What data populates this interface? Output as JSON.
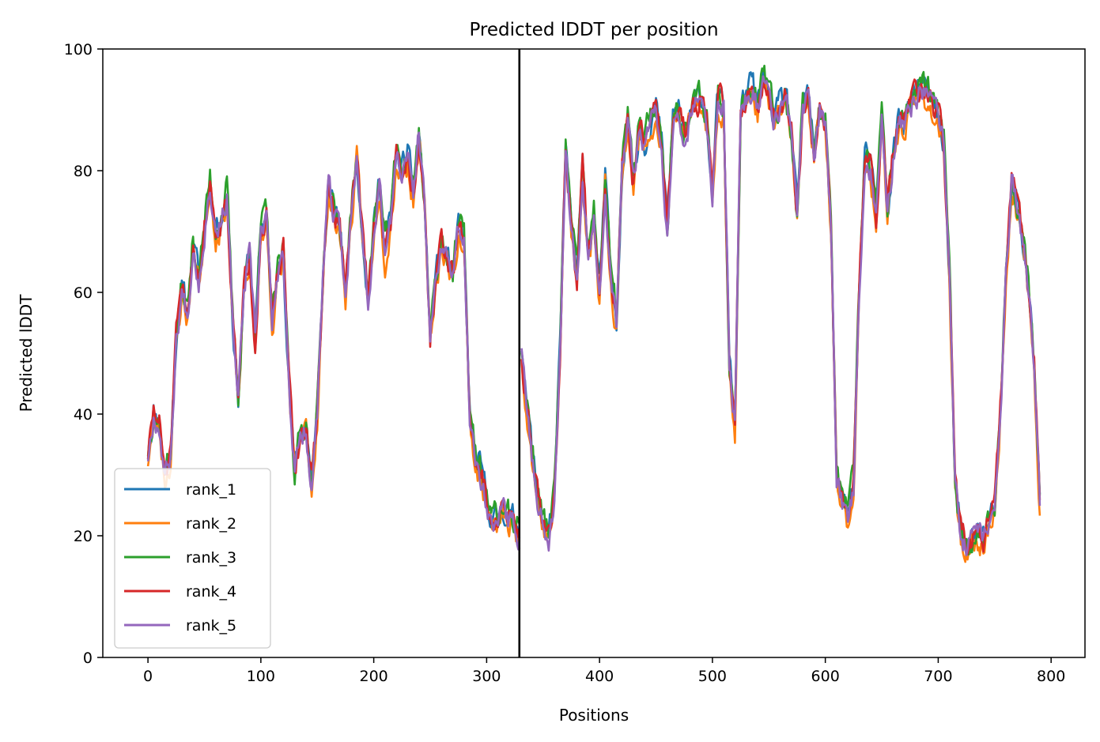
{
  "chart_data": {
    "type": "line",
    "title": "Predicted lDDT per position",
    "xlabel": "Positions",
    "ylabel": "Predicted lDDT",
    "xlim": [
      -40,
      830
    ],
    "ylim": [
      0,
      100
    ],
    "xticks": [
      0,
      100,
      200,
      300,
      400,
      500,
      600,
      700,
      800
    ],
    "yticks": [
      0,
      20,
      40,
      60,
      80,
      100
    ],
    "grid": false,
    "legend_position": "lower-left",
    "vline": {
      "x": 329,
      "color": "#000000"
    },
    "series": [
      {
        "name": "rank_1",
        "color": "#1f77b4",
        "offset": 0.6,
        "jitter": 3.6,
        "seed": 11
      },
      {
        "name": "rank_2",
        "color": "#ff7f0e",
        "offset": -0.7,
        "jitter": 3.4,
        "seed": 23
      },
      {
        "name": "rank_3",
        "color": "#2ca02c",
        "offset": 1.0,
        "jitter": 3.8,
        "seed": 37
      },
      {
        "name": "rank_4",
        "color": "#d62728",
        "offset": 0.4,
        "jitter": 3.5,
        "seed": 51
      },
      {
        "name": "rank_5",
        "color": "#9467bd",
        "offset": 0.0,
        "jitter": 3.2,
        "seed": 67
      }
    ],
    "base_profile": {
      "x": [
        0,
        5,
        10,
        15,
        20,
        25,
        30,
        35,
        40,
        45,
        50,
        55,
        60,
        65,
        70,
        75,
        80,
        85,
        90,
        95,
        100,
        105,
        110,
        115,
        120,
        125,
        130,
        135,
        140,
        145,
        150,
        155,
        160,
        165,
        170,
        175,
        180,
        185,
        190,
        195,
        200,
        205,
        210,
        215,
        220,
        225,
        230,
        235,
        240,
        245,
        250,
        255,
        260,
        265,
        270,
        275,
        280,
        285,
        290,
        295,
        300,
        305,
        310,
        315,
        320,
        325,
        329
      ],
      "y": [
        33,
        40,
        38,
        30,
        33,
        52,
        60,
        56,
        68,
        62,
        70,
        78,
        70,
        72,
        76,
        55,
        42,
        60,
        66,
        52,
        70,
        72,
        55,
        62,
        66,
        45,
        30,
        36,
        38,
        28,
        40,
        62,
        78,
        72,
        70,
        60,
        72,
        82,
        70,
        58,
        70,
        78,
        66,
        72,
        82,
        80,
        82,
        76,
        86,
        74,
        52,
        62,
        68,
        66,
        62,
        70,
        68,
        40,
        32,
        30,
        26,
        22,
        22,
        24,
        22,
        22,
        20
      ]
    },
    "base_profile_2": {
      "x": [
        331,
        335,
        340,
        345,
        350,
        355,
        360,
        365,
        370,
        375,
        380,
        385,
        390,
        395,
        400,
        405,
        410,
        415,
        420,
        425,
        430,
        435,
        440,
        445,
        450,
        455,
        460,
        465,
        470,
        475,
        480,
        485,
        490,
        495,
        500,
        505,
        510,
        515,
        520,
        525,
        530,
        535,
        540,
        545,
        550,
        555,
        560,
        565,
        570,
        575,
        580,
        585,
        590,
        595,
        600,
        605,
        610,
        615,
        620,
        625,
        630,
        635,
        640,
        645,
        650,
        655,
        660,
        665,
        670,
        675,
        680,
        685,
        690,
        695,
        700,
        705,
        710,
        715,
        720,
        725,
        730,
        735,
        740,
        745,
        750,
        755,
        760,
        765,
        770,
        775,
        780,
        785,
        790
      ],
      "y": [
        50,
        42,
        34,
        26,
        22,
        20,
        26,
        50,
        84,
        70,
        62,
        80,
        66,
        72,
        60,
        78,
        62,
        55,
        80,
        88,
        78,
        86,
        84,
        88,
        90,
        84,
        70,
        88,
        90,
        86,
        88,
        90,
        92,
        88,
        76,
        92,
        90,
        48,
        38,
        90,
        92,
        94,
        90,
        94,
        92,
        88,
        90,
        92,
        86,
        72,
        90,
        92,
        82,
        90,
        88,
        70,
        30,
        25,
        23,
        28,
        60,
        82,
        80,
        72,
        88,
        72,
        82,
        88,
        88,
        90,
        92,
        94,
        92,
        90,
        88,
        84,
        62,
        28,
        20,
        18,
        19,
        20,
        19,
        22,
        24,
        40,
        62,
        78,
        74,
        68,
        60,
        48,
        25
      ]
    }
  }
}
